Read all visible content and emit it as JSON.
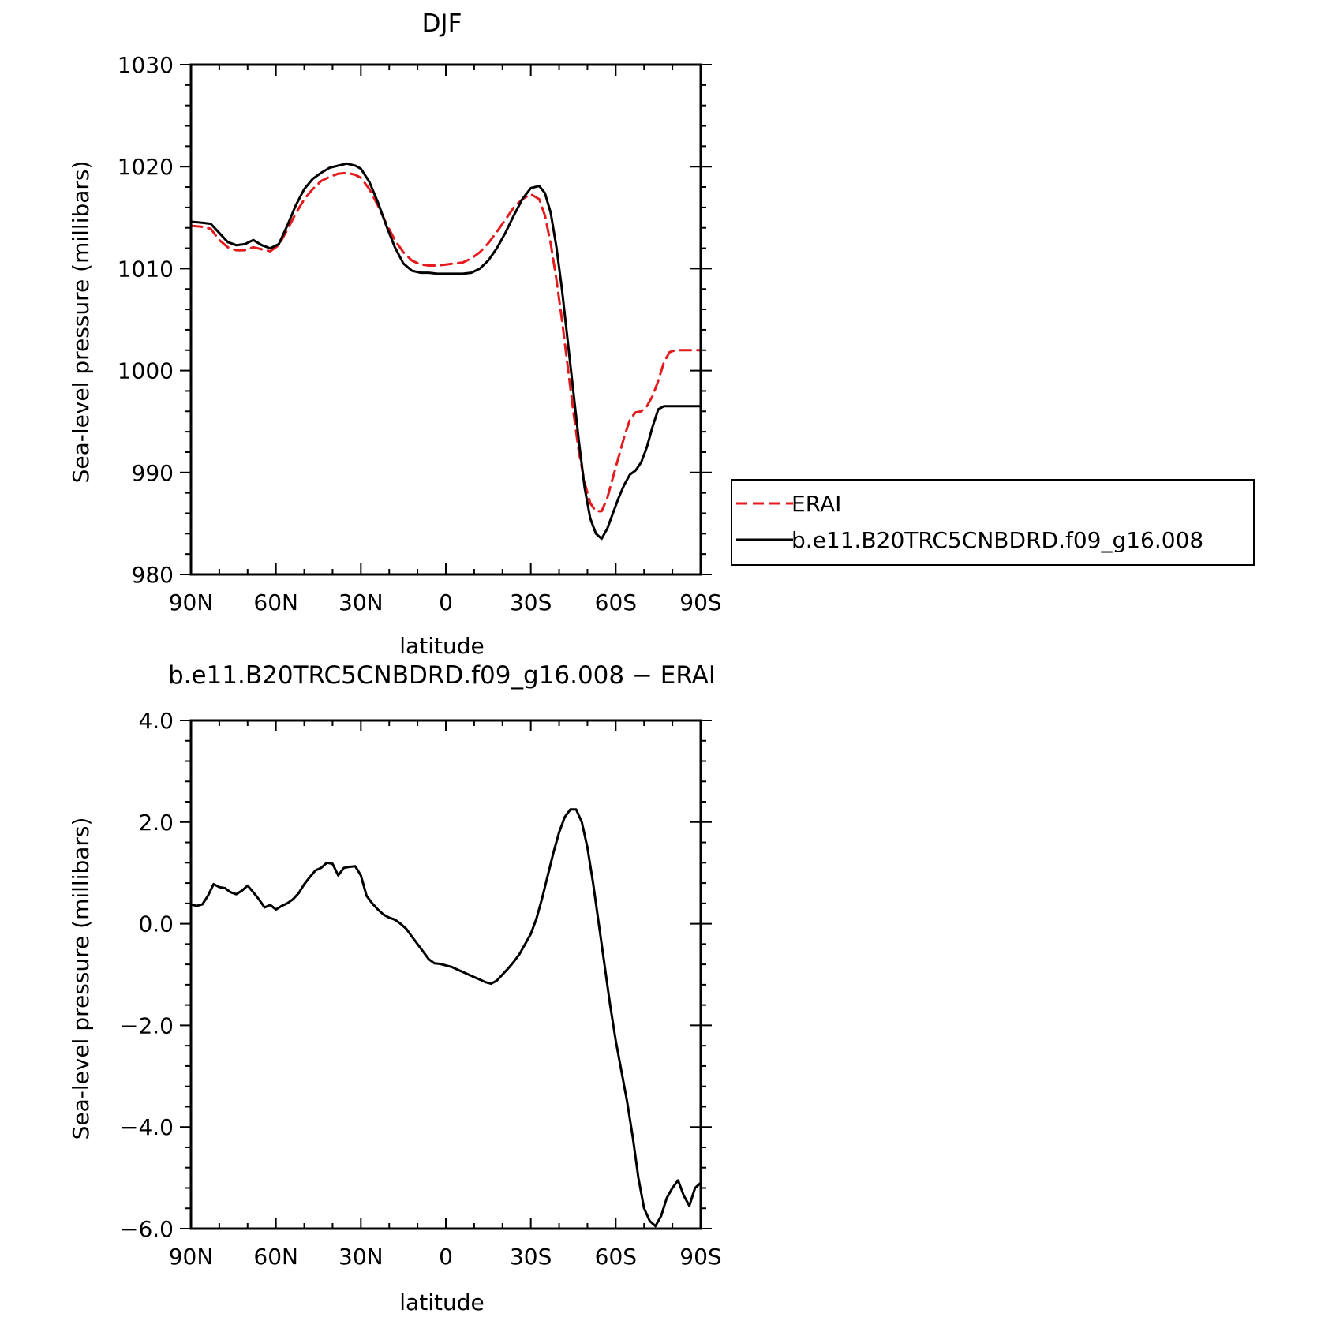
{
  "chart_data": [
    {
      "type": "line",
      "title": "DJF",
      "xlabel": "latitude",
      "ylabel": "Sea-level pressure (millibars)",
      "xlim": [
        90,
        -90
      ],
      "ylim": [
        980,
        1030
      ],
      "x_tick_values": [
        90,
        60,
        30,
        0,
        -30,
        -60,
        -90
      ],
      "x_tick_labels": [
        "90N",
        "60N",
        "30N",
        "0",
        "30S",
        "60S",
        "90S"
      ],
      "y_tick_values": [
        980,
        990,
        1000,
        1010,
        1020,
        1030
      ],
      "y_tick_labels": [
        "980",
        "990",
        "1000",
        "1010",
        "1020",
        "1030"
      ],
      "grid": false,
      "legend_position": "right",
      "series": [
        {
          "name": "ERAI",
          "color": "#e41a1c",
          "dash": "dashed",
          "x": [
            90,
            86,
            83,
            80,
            77,
            74,
            71,
            68,
            65,
            62,
            59,
            56,
            53,
            50,
            47,
            44,
            41,
            38,
            35,
            32,
            30,
            27,
            24,
            21,
            18,
            15,
            12,
            9,
            6,
            3,
            0,
            -3,
            -6,
            -9,
            -12,
            -15,
            -18,
            -21,
            -24,
            -27,
            -30,
            -33,
            -35,
            -37,
            -39,
            -41,
            -43,
            -45,
            -47,
            -49,
            -51,
            -53,
            -55,
            -57,
            -59,
            -61,
            -63,
            -65,
            -67,
            -69,
            -71,
            -73,
            -75,
            -77,
            -79,
            -81,
            -83,
            -85,
            -87,
            -89,
            -90
          ],
          "y": [
            1014.2,
            1014.1,
            1013.9,
            1012.8,
            1012.1,
            1011.8,
            1011.8,
            1012.1,
            1011.9,
            1011.7,
            1012.3,
            1013.8,
            1015.4,
            1016.8,
            1017.8,
            1018.6,
            1019.0,
            1019.3,
            1019.4,
            1019.2,
            1018.9,
            1017.8,
            1016.2,
            1014.4,
            1012.8,
            1011.6,
            1010.8,
            1010.4,
            1010.3,
            1010.3,
            1010.4,
            1010.5,
            1010.6,
            1011.0,
            1011.6,
            1012.5,
            1013.6,
            1014.8,
            1016.0,
            1016.8,
            1017.3,
            1016.8,
            1015.2,
            1012.5,
            1009.0,
            1005.0,
            1000.5,
            996.0,
            992.0,
            989.0,
            987.0,
            986.2,
            986.2,
            987.5,
            989.5,
            991.5,
            993.5,
            995.2,
            995.9,
            996.0,
            996.5,
            997.5,
            999.0,
            1000.8,
            1001.8,
            1002,
            1002,
            1002,
            1002,
            1002,
            1002
          ]
        },
        {
          "name": "b.e11.B20TRC5CNBDRD.f09_g16.008",
          "color": "#000000",
          "dash": "solid",
          "x": [
            90,
            86,
            83,
            80,
            77,
            74,
            71,
            68,
            65,
            62,
            59,
            56,
            53,
            50,
            47,
            44,
            41,
            38,
            35,
            32,
            30,
            27,
            24,
            21,
            18,
            15,
            12,
            9,
            6,
            3,
            0,
            -3,
            -6,
            -9,
            -12,
            -15,
            -18,
            -21,
            -24,
            -27,
            -30,
            -33,
            -35,
            -37,
            -39,
            -41,
            -43,
            -45,
            -47,
            -49,
            -51,
            -53,
            -55,
            -57,
            -59,
            -61,
            -63,
            -65,
            -67,
            -69,
            -71,
            -73,
            -75,
            -77,
            -79,
            -81,
            -83,
            -85,
            -87,
            -89,
            -90
          ],
          "y": [
            1014.6,
            1014.5,
            1014.4,
            1013.5,
            1012.6,
            1012.3,
            1012.4,
            1012.8,
            1012.3,
            1012.0,
            1012.4,
            1014.2,
            1016.2,
            1017.8,
            1018.8,
            1019.4,
            1019.9,
            1020.1,
            1020.3,
            1020.1,
            1019.8,
            1018.5,
            1016.5,
            1014.2,
            1012.1,
            1010.5,
            1009.8,
            1009.6,
            1009.6,
            1009.5,
            1009.5,
            1009.5,
            1009.5,
            1009.6,
            1010.0,
            1010.8,
            1012.0,
            1013.5,
            1015.2,
            1016.8,
            1017.9,
            1018.1,
            1017.4,
            1015.5,
            1012.2,
            1008.0,
            1003.0,
            998.0,
            993.0,
            988.5,
            985.5,
            984.0,
            983.5,
            984.5,
            986.0,
            987.5,
            988.8,
            989.8,
            990.2,
            991.0,
            992.5,
            994.5,
            996.2,
            996.5,
            996.5,
            996.5,
            996.5,
            996.5,
            996.5,
            996.5,
            996.5
          ]
        }
      ]
    },
    {
      "type": "line",
      "title": "b.e11.B20TRC5CNBDRD.f09_g16.008 − ERAI",
      "xlabel": "latitude",
      "ylabel": "Sea-level pressure (millibars)",
      "xlim": [
        90,
        -90
      ],
      "ylim": [
        -6.0,
        4.0
      ],
      "x_tick_values": [
        90,
        60,
        30,
        0,
        -30,
        -60,
        -90
      ],
      "x_tick_labels": [
        "90N",
        "60N",
        "30N",
        "0",
        "30S",
        "60S",
        "90S"
      ],
      "y_tick_values": [
        -6.0,
        -4.0,
        -2.0,
        0.0,
        2.0,
        4.0
      ],
      "y_tick_labels": [
        "−6.0",
        "−4.0",
        "−2.0",
        "0.0",
        "2.0",
        "4.0"
      ],
      "grid": false,
      "series": [
        {
          "color": "#000000",
          "dash": "solid",
          "x": [
            90,
            88,
            86,
            84,
            82,
            80,
            78,
            76,
            74,
            72,
            70,
            68,
            66,
            64,
            62,
            60,
            58,
            56,
            54,
            52,
            50,
            48,
            46,
            44,
            42,
            40,
            38,
            36,
            34,
            32,
            30,
            28,
            26,
            24,
            22,
            20,
            18,
            16,
            14,
            12,
            10,
            8,
            6,
            4,
            2,
            0,
            -2,
            -4,
            -6,
            -8,
            -10,
            -12,
            -14,
            -16,
            -18,
            -20,
            -22,
            -24,
            -26,
            -28,
            -30,
            -32,
            -34,
            -36,
            -38,
            -40,
            -42,
            -44,
            -46,
            -48,
            -50,
            -52,
            -54,
            -56,
            -58,
            -60,
            -62,
            -64,
            -66,
            -68,
            -70,
            -72,
            -74,
            -76,
            -78,
            -80,
            -82,
            -84,
            -86,
            -88,
            -90
          ],
          "y": [
            0.38,
            0.35,
            0.38,
            0.55,
            0.78,
            0.72,
            0.7,
            0.62,
            0.58,
            0.65,
            0.75,
            0.62,
            0.48,
            0.32,
            0.37,
            0.28,
            0.35,
            0.4,
            0.48,
            0.6,
            0.78,
            0.92,
            1.05,
            1.1,
            1.2,
            1.18,
            0.95,
            1.1,
            1.12,
            1.13,
            0.95,
            0.55,
            0.4,
            0.28,
            0.18,
            0.12,
            0.08,
            0.0,
            -0.1,
            -0.25,
            -0.4,
            -0.55,
            -0.7,
            -0.78,
            -0.79,
            -0.82,
            -0.85,
            -0.9,
            -0.95,
            -1.0,
            -1.05,
            -1.1,
            -1.15,
            -1.18,
            -1.12,
            -1.0,
            -0.88,
            -0.75,
            -0.6,
            -0.4,
            -0.2,
            0.1,
            0.5,
            0.95,
            1.4,
            1.8,
            2.1,
            2.25,
            2.25,
            2.0,
            1.5,
            0.8,
            0.0,
            -0.8,
            -1.6,
            -2.3,
            -2.9,
            -3.5,
            -4.2,
            -5.0,
            -5.6,
            -5.85,
            -5.95,
            -5.75,
            -5.4,
            -5.2,
            -5.05,
            -5.35,
            -5.55,
            -5.2,
            -5.1
          ]
        }
      ]
    }
  ]
}
